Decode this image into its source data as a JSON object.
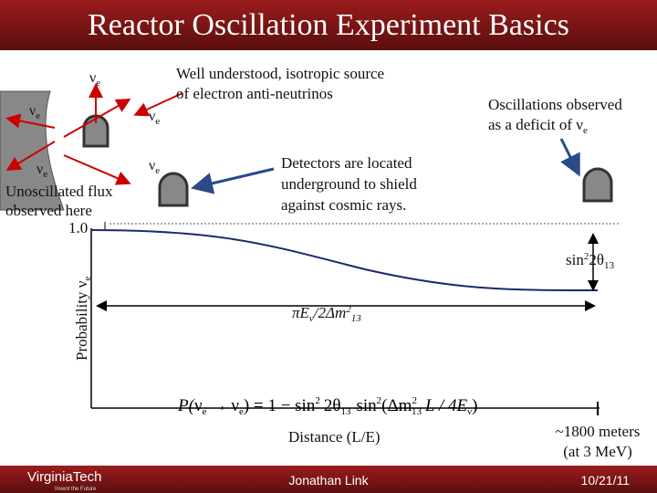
{
  "header": {
    "title": "Reactor Oscillation Experiment Basics"
  },
  "symbols": {
    "nu": "ν",
    "e": "e"
  },
  "source_note": [
    "Well understood, isotropic source",
    "of electron anti-neutrinos"
  ],
  "oscillation_note": [
    "Oscillations observed",
    "as a deficit of"
  ],
  "detector_note": [
    "Detectors are located",
    "underground to shield",
    "against cosmic rays."
  ],
  "unoscillated_note": [
    "Unoscillated flux",
    "observed here"
  ],
  "plot": {
    "y_label": "Probability",
    "y_top": "1.0",
    "amplitude": [
      "sin",
      "2",
      "2θ",
      "13"
    ],
    "period": [
      "πE",
      "ν",
      "/2Δm",
      "2",
      "13"
    ],
    "formula": [
      "P(",
      "→",
      ") = 1 − sin",
      "2",
      "2θ",
      "13",
      "sin",
      "2",
      "(Δm",
      "2",
      "13",
      "L / 4E",
      "ν",
      ")"
    ],
    "x_label": "Distance (L/E)",
    "distance_note": [
      "~1800 meters",
      "(at 3 MeV)"
    ]
  },
  "footer": {
    "logo": "VirginiaTech",
    "tagline": "Invent the Future",
    "author": "Jonathan Link",
    "date": "10/21/11"
  }
}
